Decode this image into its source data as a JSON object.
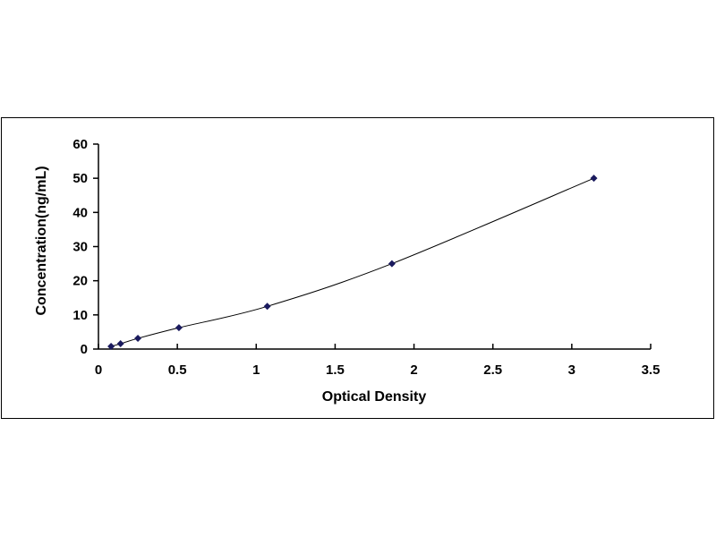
{
  "chart_data": {
    "type": "scatter",
    "title": "",
    "xlabel": "Optical Density",
    "ylabel": "Concentration(ng/mL)",
    "xlim": [
      0,
      3.5
    ],
    "ylim": [
      0,
      60
    ],
    "xticks": [
      "0",
      "0.5",
      "1",
      "1.5",
      "2",
      "2.5",
      "3",
      "3.5"
    ],
    "yticks": [
      "0",
      "10",
      "20",
      "30",
      "40",
      "50",
      "60"
    ],
    "grid": false,
    "trendline": "smooth curve",
    "marker_color": "#1a1a5e",
    "line_color": "#000000",
    "points": [
      {
        "x": 0.08,
        "y": 0.78
      },
      {
        "x": 0.14,
        "y": 1.56
      },
      {
        "x": 0.25,
        "y": 3.13
      },
      {
        "x": 0.51,
        "y": 6.25
      },
      {
        "x": 1.07,
        "y": 12.5
      },
      {
        "x": 1.86,
        "y": 25
      },
      {
        "x": 3.14,
        "y": 50
      }
    ]
  }
}
